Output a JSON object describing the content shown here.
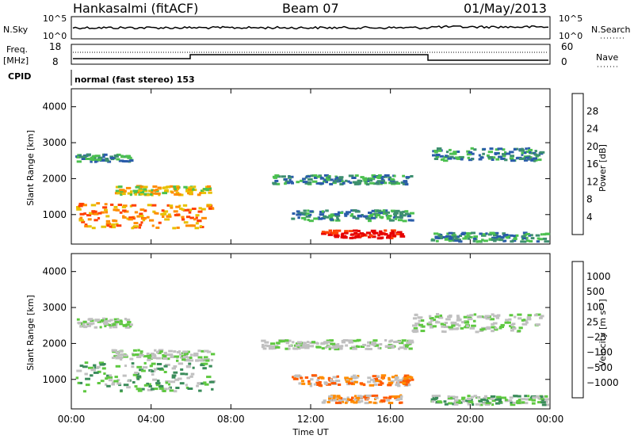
{
  "header": {
    "station": "Hankasalmi (fitACF)",
    "beam": "Beam 07",
    "date": "01/May/2013"
  },
  "top_panels": {
    "nsky_label": "N.Sky",
    "nsearch_label": "N.Search",
    "freq_label": "Freq.",
    "freq_unit": "[MHz]",
    "nave_label": "Nave",
    "cpid_label": "CPID",
    "cpid_text": "normal (fast stereo) 153",
    "nsky_ticks_left": [
      "10^5",
      "10^0"
    ],
    "nsky_ticks_right": [
      "10^5",
      "10^0"
    ],
    "freq_ticks": [
      "18",
      "8"
    ],
    "nave_ticks": [
      "60",
      "0"
    ]
  },
  "colors": {
    "power": [
      "#1a1aff",
      "#2a5caa",
      "#3d8f6f",
      "#4cc050",
      "#e8c000",
      "#ff8c00",
      "#ff4000",
      "#e60000"
    ],
    "velocity": [
      "#2a4cd6",
      "#2f6fb0",
      "#3a8c5a",
      "#5ec840",
      "#c0c0c0",
      "#c0c0c0",
      "#ff8c00",
      "#ff5a00",
      "#e61e00"
    ],
    "ground": "#bdbdbd"
  },
  "chart_data": [
    {
      "type": "heatmap",
      "name": "power",
      "xlabel": "Time UT",
      "ylabel": "Slant Range [km]",
      "xlim": [
        0,
        24
      ],
      "ylim": [
        180,
        4500
      ],
      "x_ticks": [
        "00:00",
        "04:00",
        "08:00",
        "12:00",
        "16:00",
        "20:00",
        "00:00"
      ],
      "y_ticks": [
        "1000",
        "2000",
        "3000",
        "4000"
      ],
      "colorbar_label": "Power [dB]",
      "colorbar_ticks": [
        "4",
        "8",
        "12",
        "16",
        "20",
        "24",
        "28"
      ],
      "regions": [
        {
          "t0": 0.2,
          "t1": 7.0,
          "r_center": 1000,
          "r_width": 700,
          "level": 5
        },
        {
          "t0": 2.0,
          "t1": 7.0,
          "r_center": 1700,
          "r_width": 250,
          "level": 4
        },
        {
          "t0": 0.2,
          "t1": 3.0,
          "r_center": 2600,
          "r_width": 200,
          "level": 2
        },
        {
          "t0": 10.0,
          "t1": 17.0,
          "r_center": 2000,
          "r_width": 250,
          "level": 2
        },
        {
          "t0": 11.0,
          "t1": 17.0,
          "r_center": 1000,
          "r_width": 300,
          "level": 2
        },
        {
          "t0": 12.5,
          "t1": 16.5,
          "r_center": 480,
          "r_width": 220,
          "level": 7
        },
        {
          "t0": 18.0,
          "t1": 23.5,
          "r_center": 2700,
          "r_width": 350,
          "level": 2
        },
        {
          "t0": 18.0,
          "t1": 23.8,
          "r_center": 400,
          "r_width": 250,
          "level": 2
        }
      ]
    },
    {
      "type": "heatmap",
      "name": "velocity",
      "xlabel": "Time UT",
      "ylabel": "Slant Range [km]",
      "xlim": [
        0,
        24
      ],
      "ylim": [
        180,
        4500
      ],
      "x_ticks": [
        "00:00",
        "04:00",
        "08:00",
        "12:00",
        "16:00",
        "20:00",
        "00:00"
      ],
      "y_ticks": [
        "1000",
        "2000",
        "3000",
        "4000"
      ],
      "colorbar_label": "Velocity [m s⁻¹]",
      "colorbar_ticks": [
        "1000",
        "500",
        "100",
        "25",
        "−25",
        "−100",
        "−500",
        "−1000"
      ],
      "regions": [
        {
          "t0": 0.2,
          "t1": 7.0,
          "r_center": 1100,
          "r_width": 800,
          "level": 3
        },
        {
          "t0": 2.0,
          "t1": 7.0,
          "r_center": 1700,
          "r_width": 300,
          "level": 4
        },
        {
          "t0": 0.2,
          "t1": 3.0,
          "r_center": 2600,
          "r_width": 250,
          "level": 4
        },
        {
          "t0": 9.5,
          "t1": 17.0,
          "r_center": 2000,
          "r_width": 250,
          "level": 4
        },
        {
          "t0": 11.0,
          "t1": 17.0,
          "r_center": 1000,
          "r_width": 300,
          "level": 6
        },
        {
          "t0": 12.5,
          "t1": 16.5,
          "r_center": 480,
          "r_width": 220,
          "level": 6
        },
        {
          "t0": 17.0,
          "t1": 23.5,
          "r_center": 2600,
          "r_width": 500,
          "level": 4
        },
        {
          "t0": 18.0,
          "t1": 23.8,
          "r_center": 450,
          "r_width": 250,
          "level": 3
        }
      ]
    }
  ]
}
